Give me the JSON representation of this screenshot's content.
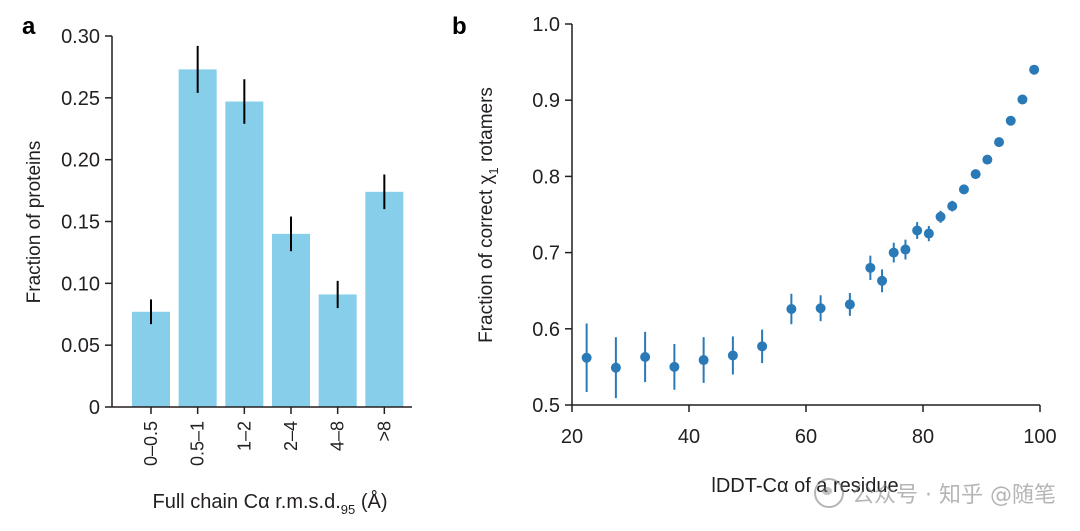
{
  "panel_a": {
    "letter": "a",
    "ylabel": "Fraction of proteins",
    "xlabel_main": "Full chain Cα r.m.s.d.",
    "xlabel_sub": "95",
    "xlabel_unit": " (Å)"
  },
  "panel_b": {
    "letter": "b",
    "ylabel_main": "Fraction of correct χ",
    "ylabel_sub": "1",
    "ylabel_tail": " rotamers",
    "xlabel": "lDDT-Cα of a residue"
  },
  "watermark": {
    "text": "公众号 · 知乎 @随笔"
  },
  "colors": {
    "bar": "#87ceeb",
    "point": "#2a7ab8",
    "errbar": "#000000",
    "axis": "#231f20"
  },
  "chart_data": [
    {
      "type": "bar",
      "panel": "a",
      "categories": [
        "0–0.5",
        "0.5–1",
        "1–2",
        "2–4",
        "4–8",
        ">8"
      ],
      "values": [
        0.077,
        0.273,
        0.247,
        0.14,
        0.091,
        0.174
      ],
      "errors": [
        0.01,
        0.019,
        0.018,
        0.014,
        0.011,
        0.014
      ],
      "ylim": [
        0,
        0.3
      ],
      "yticks": [
        "0",
        "0.05",
        "0.10",
        "0.15",
        "0.20",
        "0.25",
        "0.30"
      ],
      "xlabel": "Full chain Cα r.m.s.d.95 (Å)",
      "ylabel": "Fraction of proteins",
      "grid": false
    },
    {
      "type": "scatter",
      "panel": "b",
      "x": [
        22.5,
        27.5,
        32.5,
        37.5,
        42.5,
        47.5,
        52.5,
        57.5,
        62.5,
        67.5,
        71,
        73,
        75,
        77,
        79,
        81,
        83,
        85,
        87,
        89,
        91,
        93,
        95,
        97,
        99
      ],
      "y": [
        0.562,
        0.549,
        0.563,
        0.55,
        0.559,
        0.565,
        0.577,
        0.626,
        0.627,
        0.632,
        0.68,
        0.663,
        0.7,
        0.704,
        0.729,
        0.725,
        0.747,
        0.761,
        0.783,
        0.803,
        0.822,
        0.845,
        0.873,
        0.901,
        0.94
      ],
      "errors": [
        0.045,
        0.04,
        0.033,
        0.03,
        0.03,
        0.025,
        0.022,
        0.02,
        0.017,
        0.015,
        0.016,
        0.015,
        0.013,
        0.013,
        0.011,
        0.01,
        0.008,
        0.007,
        0.006,
        0.005,
        0.004,
        0.004,
        0.004,
        0.003,
        0.003
      ],
      "xlim": [
        20,
        100
      ],
      "ylim": [
        0.5,
        1.0
      ],
      "xticks": [
        "20",
        "40",
        "60",
        "80",
        "100"
      ],
      "yticks": [
        "0.5",
        "0.6",
        "0.7",
        "0.8",
        "0.9",
        "1.0"
      ],
      "xlabel": "lDDT-Cα of a residue",
      "ylabel": "Fraction of correct χ1 rotamers",
      "grid": false
    }
  ]
}
